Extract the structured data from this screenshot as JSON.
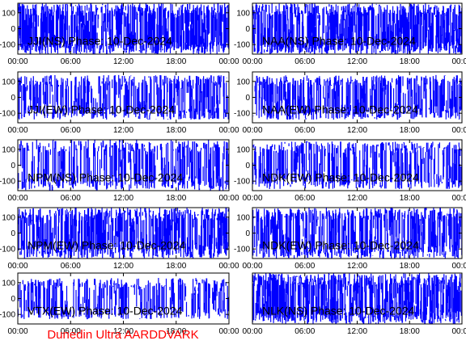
{
  "figure": {
    "footer_text": "Dunedin Ultra AARDDVARK",
    "colors": {
      "trace": "#0000ff",
      "axes": "#000000",
      "footer": "#ff0000",
      "background": "#ffffff"
    }
  },
  "chart_data": [
    {
      "type": "line",
      "label": "JJI(NS) Phase: 10-Dec-2024",
      "x_ticks": [
        "00:00",
        "06:00",
        "12:00",
        "18:00",
        "00:00"
      ],
      "y_ticks": [
        100,
        0,
        -100
      ],
      "ylim": [
        -160,
        160
      ],
      "xlim_hours": [
        0,
        24
      ],
      "density": 0.97,
      "amplitude": 160
    },
    {
      "type": "line",
      "label": "NAA(NS) Phase: 10-Dec-2024",
      "x_ticks": [
        "00:00",
        "06:00",
        "12:00",
        "18:00",
        "00:00"
      ],
      "y_ticks": [
        100,
        0,
        -100
      ],
      "ylim": [
        -160,
        160
      ],
      "xlim_hours": [
        0,
        24
      ],
      "density": 0.97,
      "amplitude": 160
    },
    {
      "type": "line",
      "label": "JJI(EW) Phase: 10-Dec-2024",
      "x_ticks": [
        "00:00",
        "06:00",
        "12:00",
        "18:00",
        "00:00"
      ],
      "y_ticks": [
        100,
        0,
        -100
      ],
      "ylim": [
        -160,
        160
      ],
      "xlim_hours": [
        0,
        24
      ],
      "density": 0.7,
      "amplitude": 140
    },
    {
      "type": "line",
      "label": "NAA(EW) Phase: 10-Dec-2024",
      "x_ticks": [
        "00:00",
        "06:00",
        "12:00",
        "18:00",
        "00:00"
      ],
      "y_ticks": [
        100,
        0,
        -100
      ],
      "ylim": [
        -160,
        160
      ],
      "xlim_hours": [
        0,
        24
      ],
      "density": 0.7,
      "amplitude": 140
    },
    {
      "type": "line",
      "label": "NPM(NS) Phase: 10-Dec-2024",
      "x_ticks": [
        "00:00",
        "06:00",
        "12:00",
        "18:00",
        "00:00"
      ],
      "y_ticks": [
        100,
        0,
        -100
      ],
      "ylim": [
        -160,
        160
      ],
      "xlim_hours": [
        0,
        24
      ],
      "density": 0.65,
      "amplitude": 160
    },
    {
      "type": "line",
      "label": "NDK(EW) Phase: 10-Dec-2024",
      "x_ticks": [
        "00:00",
        "06:00",
        "12:00",
        "18:00",
        "00:00"
      ],
      "y_ticks": [
        100,
        0,
        -100
      ],
      "ylim": [
        -160,
        160
      ],
      "xlim_hours": [
        0,
        24
      ],
      "density": 0.6,
      "amplitude": 150
    },
    {
      "type": "line",
      "label": "NPM(EW) Phase: 10-Dec-2024",
      "x_ticks": [
        "00:00",
        "06:00",
        "12:00",
        "18:00",
        "00:00"
      ],
      "y_ticks": [
        100,
        0,
        -100
      ],
      "ylim": [
        -160,
        160
      ],
      "xlim_hours": [
        0,
        24
      ],
      "density": 0.85,
      "amplitude": 160
    },
    {
      "type": "line",
      "label": "NDK(EW) Phase: 10-Dec-2024",
      "x_ticks": [
        "00:00",
        "06:00",
        "12:00",
        "18:00",
        "00:00"
      ],
      "y_ticks": [
        100,
        0,
        -100
      ],
      "ylim": [
        -160,
        160
      ],
      "xlim_hours": [
        0,
        24
      ],
      "density": 0.8,
      "amplitude": 160
    },
    {
      "type": "line",
      "label": "VTX(EW) Phase: 10-Dec-2024",
      "x_ticks": [
        "00:00",
        "06:00",
        "12:00",
        "18:00",
        "00:00"
      ],
      "y_ticks": [
        100,
        0,
        -100
      ],
      "ylim": [
        -160,
        160
      ],
      "xlim_hours": [
        0,
        24
      ],
      "density": 0.55,
      "amplitude": 130
    },
    {
      "type": "line",
      "label": "NLK(NS) Phase: 10-Dec-2024",
      "x_ticks": [
        "00:00",
        "06:00",
        "12:00",
        "18:00",
        "00:00"
      ],
      "y_ticks": [],
      "ylim": [
        -160,
        160
      ],
      "xlim_hours": [
        0,
        24
      ],
      "density": 0.95,
      "amplitude": 160
    }
  ]
}
